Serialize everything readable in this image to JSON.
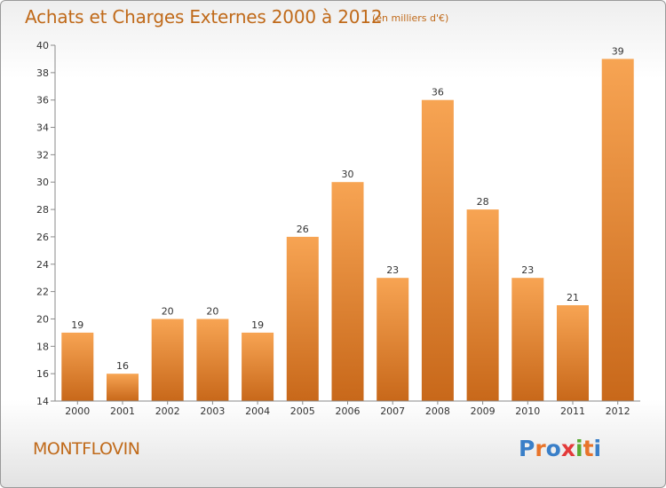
{
  "header": {
    "title": "Achats et Charges Externes 2000 à 2012",
    "unit": "(en milliers d'€)"
  },
  "footer": {
    "commune": "MONTFLOVIN",
    "logo_text": "Proxiti"
  },
  "colors": {
    "accent": "#c06a1a",
    "bar_top": "#f7a453",
    "bar_bottom": "#c8681a",
    "logo_letters": [
      "#3a7fc8",
      "#e8742a",
      "#3a7fc8",
      "#e33a3a",
      "#5aaa32",
      "#e8742a",
      "#3a7fc8"
    ]
  },
  "chart_data": {
    "type": "bar",
    "title": "Achats et Charges Externes 2000 à 2012",
    "subtitle": "(en milliers d'€)",
    "xlabel": "",
    "ylabel": "",
    "categories": [
      "2000",
      "2001",
      "2002",
      "2003",
      "2004",
      "2005",
      "2006",
      "2007",
      "2008",
      "2009",
      "2010",
      "2011",
      "2012"
    ],
    "values": [
      19,
      16,
      20,
      20,
      19,
      26,
      30,
      23,
      36,
      28,
      23,
      21,
      39
    ],
    "ylim": [
      14,
      40
    ],
    "yticks": [
      14,
      16,
      18,
      20,
      22,
      24,
      26,
      28,
      30,
      32,
      34,
      36,
      38,
      40
    ],
    "grid": false,
    "data_labels": true
  }
}
